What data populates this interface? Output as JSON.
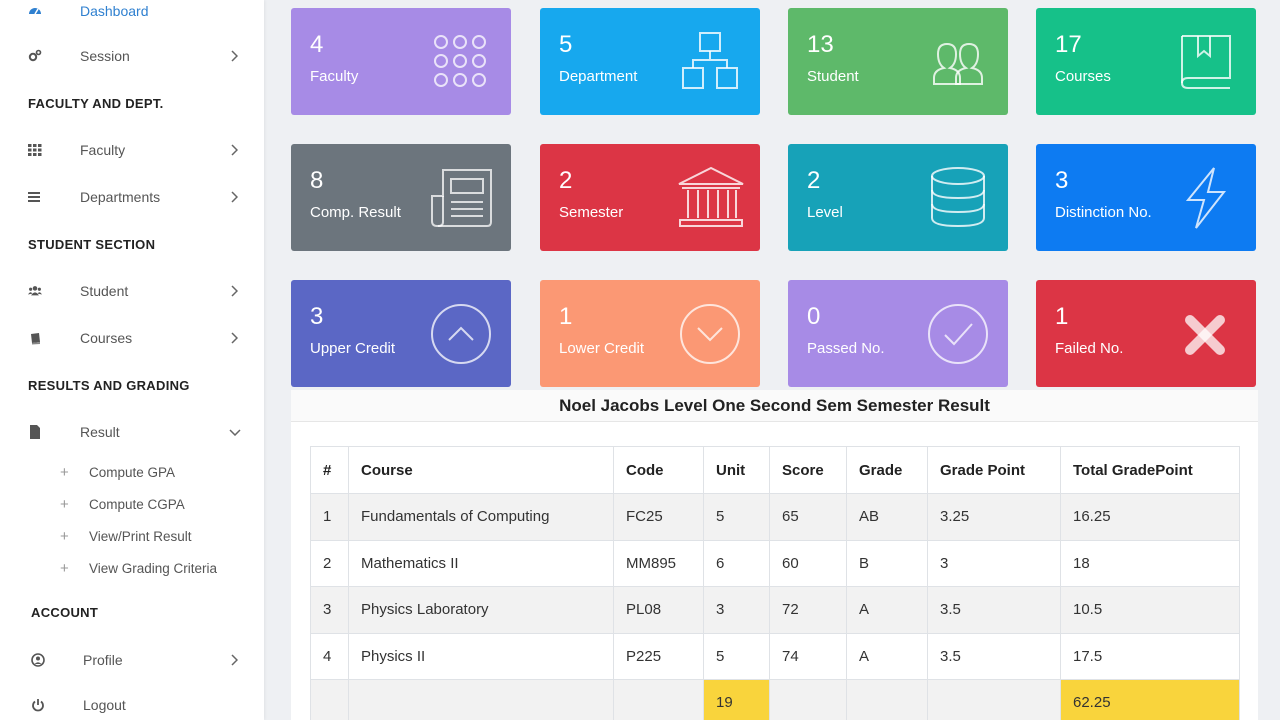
{
  "sidebar": {
    "dashboard": "Dashboard",
    "session": "Session",
    "sections": {
      "faculty_dept": "FACULTY AND DEPT.",
      "student": "STUDENT SECTION",
      "results": "RESULTS AND GRADING",
      "account": "ACCOUNT"
    },
    "faculty": "Faculty",
    "departments": "Departments",
    "student": "Student",
    "courses": "Courses",
    "result": "Result",
    "result_sub": [
      "Compute GPA",
      "Compute CGPA",
      "View/Print Result",
      "View Grading Criteria"
    ],
    "profile": "Profile",
    "logout": "Logout"
  },
  "cards": [
    {
      "value": "4",
      "label": "Faculty",
      "color": "#a78be6",
      "icon": "grid-dots-icon"
    },
    {
      "value": "5",
      "label": "Department",
      "color": "#17a8ee",
      "icon": "sitemap-icon"
    },
    {
      "value": "13",
      "label": "Student",
      "color": "#5eb96a",
      "icon": "users-icon"
    },
    {
      "value": "17",
      "label": "Courses",
      "color": "#16c189",
      "icon": "book-icon"
    },
    {
      "value": "8",
      "label": "Comp. Result",
      "color": "#6c757d",
      "icon": "newspaper-icon"
    },
    {
      "value": "2",
      "label": "Semester",
      "color": "#dc3545",
      "icon": "institution-icon"
    },
    {
      "value": "2",
      "label": "Level",
      "color": "#17a2b8",
      "icon": "database-icon"
    },
    {
      "value": "3",
      "label": "Distinction No.",
      "color": "#0d7bf2",
      "icon": "lightning-icon"
    },
    {
      "value": "3",
      "label": "Upper Credit",
      "color": "#5b67c5",
      "icon": "chevron-up-circle-icon"
    },
    {
      "value": "1",
      "label": "Lower Credit",
      "color": "#fb9874",
      "icon": "chevron-down-circle-icon"
    },
    {
      "value": "0",
      "label": "Passed No.",
      "color": "#a78be6",
      "icon": "check-circle-icon"
    },
    {
      "value": "1",
      "label": "Failed No.",
      "color": "#dc3545",
      "icon": "x-mark-icon"
    }
  ],
  "result": {
    "title": "Noel Jacobs Level One Second Sem Semester Result",
    "headers": [
      "#",
      "Course",
      "Code",
      "Unit",
      "Score",
      "Grade",
      "Grade Point",
      "Total GradePoint"
    ],
    "rows": [
      [
        "1",
        "Fundamentals of Computing",
        "FC25",
        "5",
        "65",
        "AB",
        "3.25",
        "16.25"
      ],
      [
        "2",
        "Mathematics II",
        "MM895",
        "6",
        "60",
        "B",
        "3",
        "18"
      ],
      [
        "3",
        "Physics Laboratory",
        "PL08",
        "3",
        "72",
        "A",
        "3.5",
        "10.5"
      ],
      [
        "4",
        "Physics II",
        "P225",
        "5",
        "74",
        "A",
        "3.5",
        "17.5"
      ]
    ],
    "total_units": "19",
    "total_gradepoint": "62.25",
    "highlight_color": "#f9d43c"
  }
}
